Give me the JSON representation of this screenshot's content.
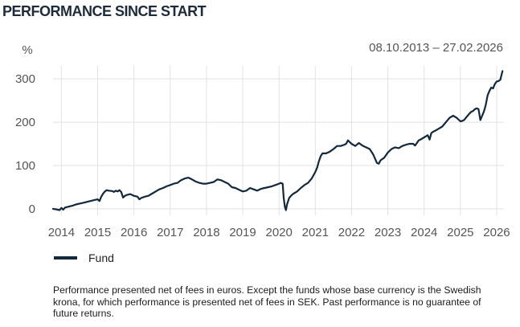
{
  "header": {
    "title": "PERFORMANCE SINCE START",
    "date_range": "08.10.2013 – 27.02.2026"
  },
  "legend": {
    "fund_label": "Fund"
  },
  "disclaimer": "Performance presented net of fees in euros. Except the funds whose base currency is the Swedish krona, for which performance is presented net of fees in SEK. Past performance is no guarantee of future returns.",
  "colors": {
    "line": "#14283b",
    "grid": "#e2e2e2",
    "title": "#1c2a3a"
  },
  "chart_data": {
    "type": "line",
    "title": "PERFORMANCE SINCE START",
    "ylabel": "%",
    "xlabel": "",
    "ylim": [
      -15,
      330
    ],
    "xlim": [
      2013.77,
      2026.2
    ],
    "y_ticks": [
      0,
      100,
      200,
      300
    ],
    "x_ticks": [
      "2014",
      "2015",
      "2016",
      "2017",
      "2018",
      "2019",
      "2020",
      "2021",
      "2022",
      "2023",
      "2024",
      "2025",
      "2026"
    ],
    "grid": true,
    "legend_position": "bottom-left",
    "series": [
      {
        "name": "Fund",
        "x": [
          2013.77,
          2013.85,
          2013.95,
          2014.0,
          2014.05,
          2014.1,
          2014.2,
          2014.3,
          2014.4,
          2014.5,
          2014.6,
          2014.7,
          2014.8,
          2014.9,
          2015.0,
          2015.05,
          2015.1,
          2015.15,
          2015.2,
          2015.25,
          2015.3,
          2015.4,
          2015.45,
          2015.5,
          2015.55,
          2015.6,
          2015.65,
          2015.7,
          2015.75,
          2015.8,
          2015.9,
          2016.0,
          2016.1,
          2016.15,
          2016.2,
          2016.3,
          2016.4,
          2016.5,
          2016.6,
          2016.7,
          2016.8,
          2016.9,
          2017.0,
          2017.1,
          2017.2,
          2017.3,
          2017.4,
          2017.5,
          2017.6,
          2017.7,
          2017.8,
          2017.9,
          2018.0,
          2018.1,
          2018.2,
          2018.3,
          2018.4,
          2018.5,
          2018.6,
          2018.7,
          2018.8,
          2018.9,
          2019.0,
          2019.1,
          2019.2,
          2019.3,
          2019.4,
          2019.5,
          2019.6,
          2019.7,
          2019.8,
          2019.9,
          2020.0,
          2020.05,
          2020.1,
          2020.13,
          2020.16,
          2020.19,
          2020.22,
          2020.28,
          2020.35,
          2020.4,
          2020.5,
          2020.6,
          2020.7,
          2020.8,
          2020.9,
          2021.0,
          2021.05,
          2021.1,
          2021.15,
          2021.2,
          2021.3,
          2021.4,
          2021.5,
          2021.6,
          2021.7,
          2021.8,
          2021.85,
          2021.9,
          2022.0,
          2022.1,
          2022.2,
          2022.3,
          2022.4,
          2022.5,
          2022.6,
          2022.65,
          2022.7,
          2022.75,
          2022.8,
          2022.9,
          2023.0,
          2023.1,
          2023.2,
          2023.3,
          2023.4,
          2023.5,
          2023.6,
          2023.7,
          2023.75,
          2023.8,
          2023.85,
          2023.9,
          2024.0,
          2024.1,
          2024.15,
          2024.2,
          2024.25,
          2024.3,
          2024.4,
          2024.5,
          2024.6,
          2024.7,
          2024.8,
          2024.9,
          2025.0,
          2025.05,
          2025.1,
          2025.15,
          2025.2,
          2025.25,
          2025.3,
          2025.35,
          2025.4,
          2025.45,
          2025.5,
          2025.55,
          2025.6,
          2025.65,
          2025.7,
          2025.75,
          2025.8,
          2025.85,
          2025.9,
          2025.95,
          2026.0,
          2026.05,
          2026.1,
          2026.16
        ],
        "values": [
          0,
          -1,
          -3,
          2,
          -2,
          3,
          5,
          7,
          10,
          12,
          14,
          16,
          18,
          20,
          22,
          18,
          28,
          35,
          40,
          43,
          42,
          41,
          39,
          42,
          40,
          43,
          39,
          26,
          30,
          32,
          34,
          30,
          28,
          22,
          25,
          28,
          30,
          35,
          40,
          45,
          48,
          52,
          55,
          58,
          60,
          66,
          70,
          72,
          68,
          63,
          60,
          58,
          58,
          60,
          62,
          68,
          66,
          62,
          58,
          50,
          48,
          44,
          40,
          42,
          48,
          45,
          42,
          46,
          48,
          50,
          52,
          55,
          58,
          60,
          58,
          25,
          5,
          -3,
          10,
          25,
          32,
          35,
          40,
          48,
          55,
          60,
          70,
          85,
          95,
          110,
          122,
          128,
          128,
          132,
          138,
          145,
          145,
          148,
          150,
          158,
          150,
          145,
          152,
          146,
          142,
          138,
          125,
          115,
          106,
          104,
          112,
          118,
          130,
          138,
          142,
          140,
          145,
          148,
          150,
          150,
          146,
          152,
          158,
          160,
          165,
          170,
          160,
          175,
          178,
          180,
          185,
          190,
          200,
          210,
          215,
          210,
          202,
          203,
          205,
          210,
          215,
          220,
          224,
          226,
          230,
          232,
          230,
          205,
          215,
          225,
          240,
          262,
          272,
          280,
          278,
          288,
          294,
          295,
          298,
          318
        ]
      }
    ]
  }
}
